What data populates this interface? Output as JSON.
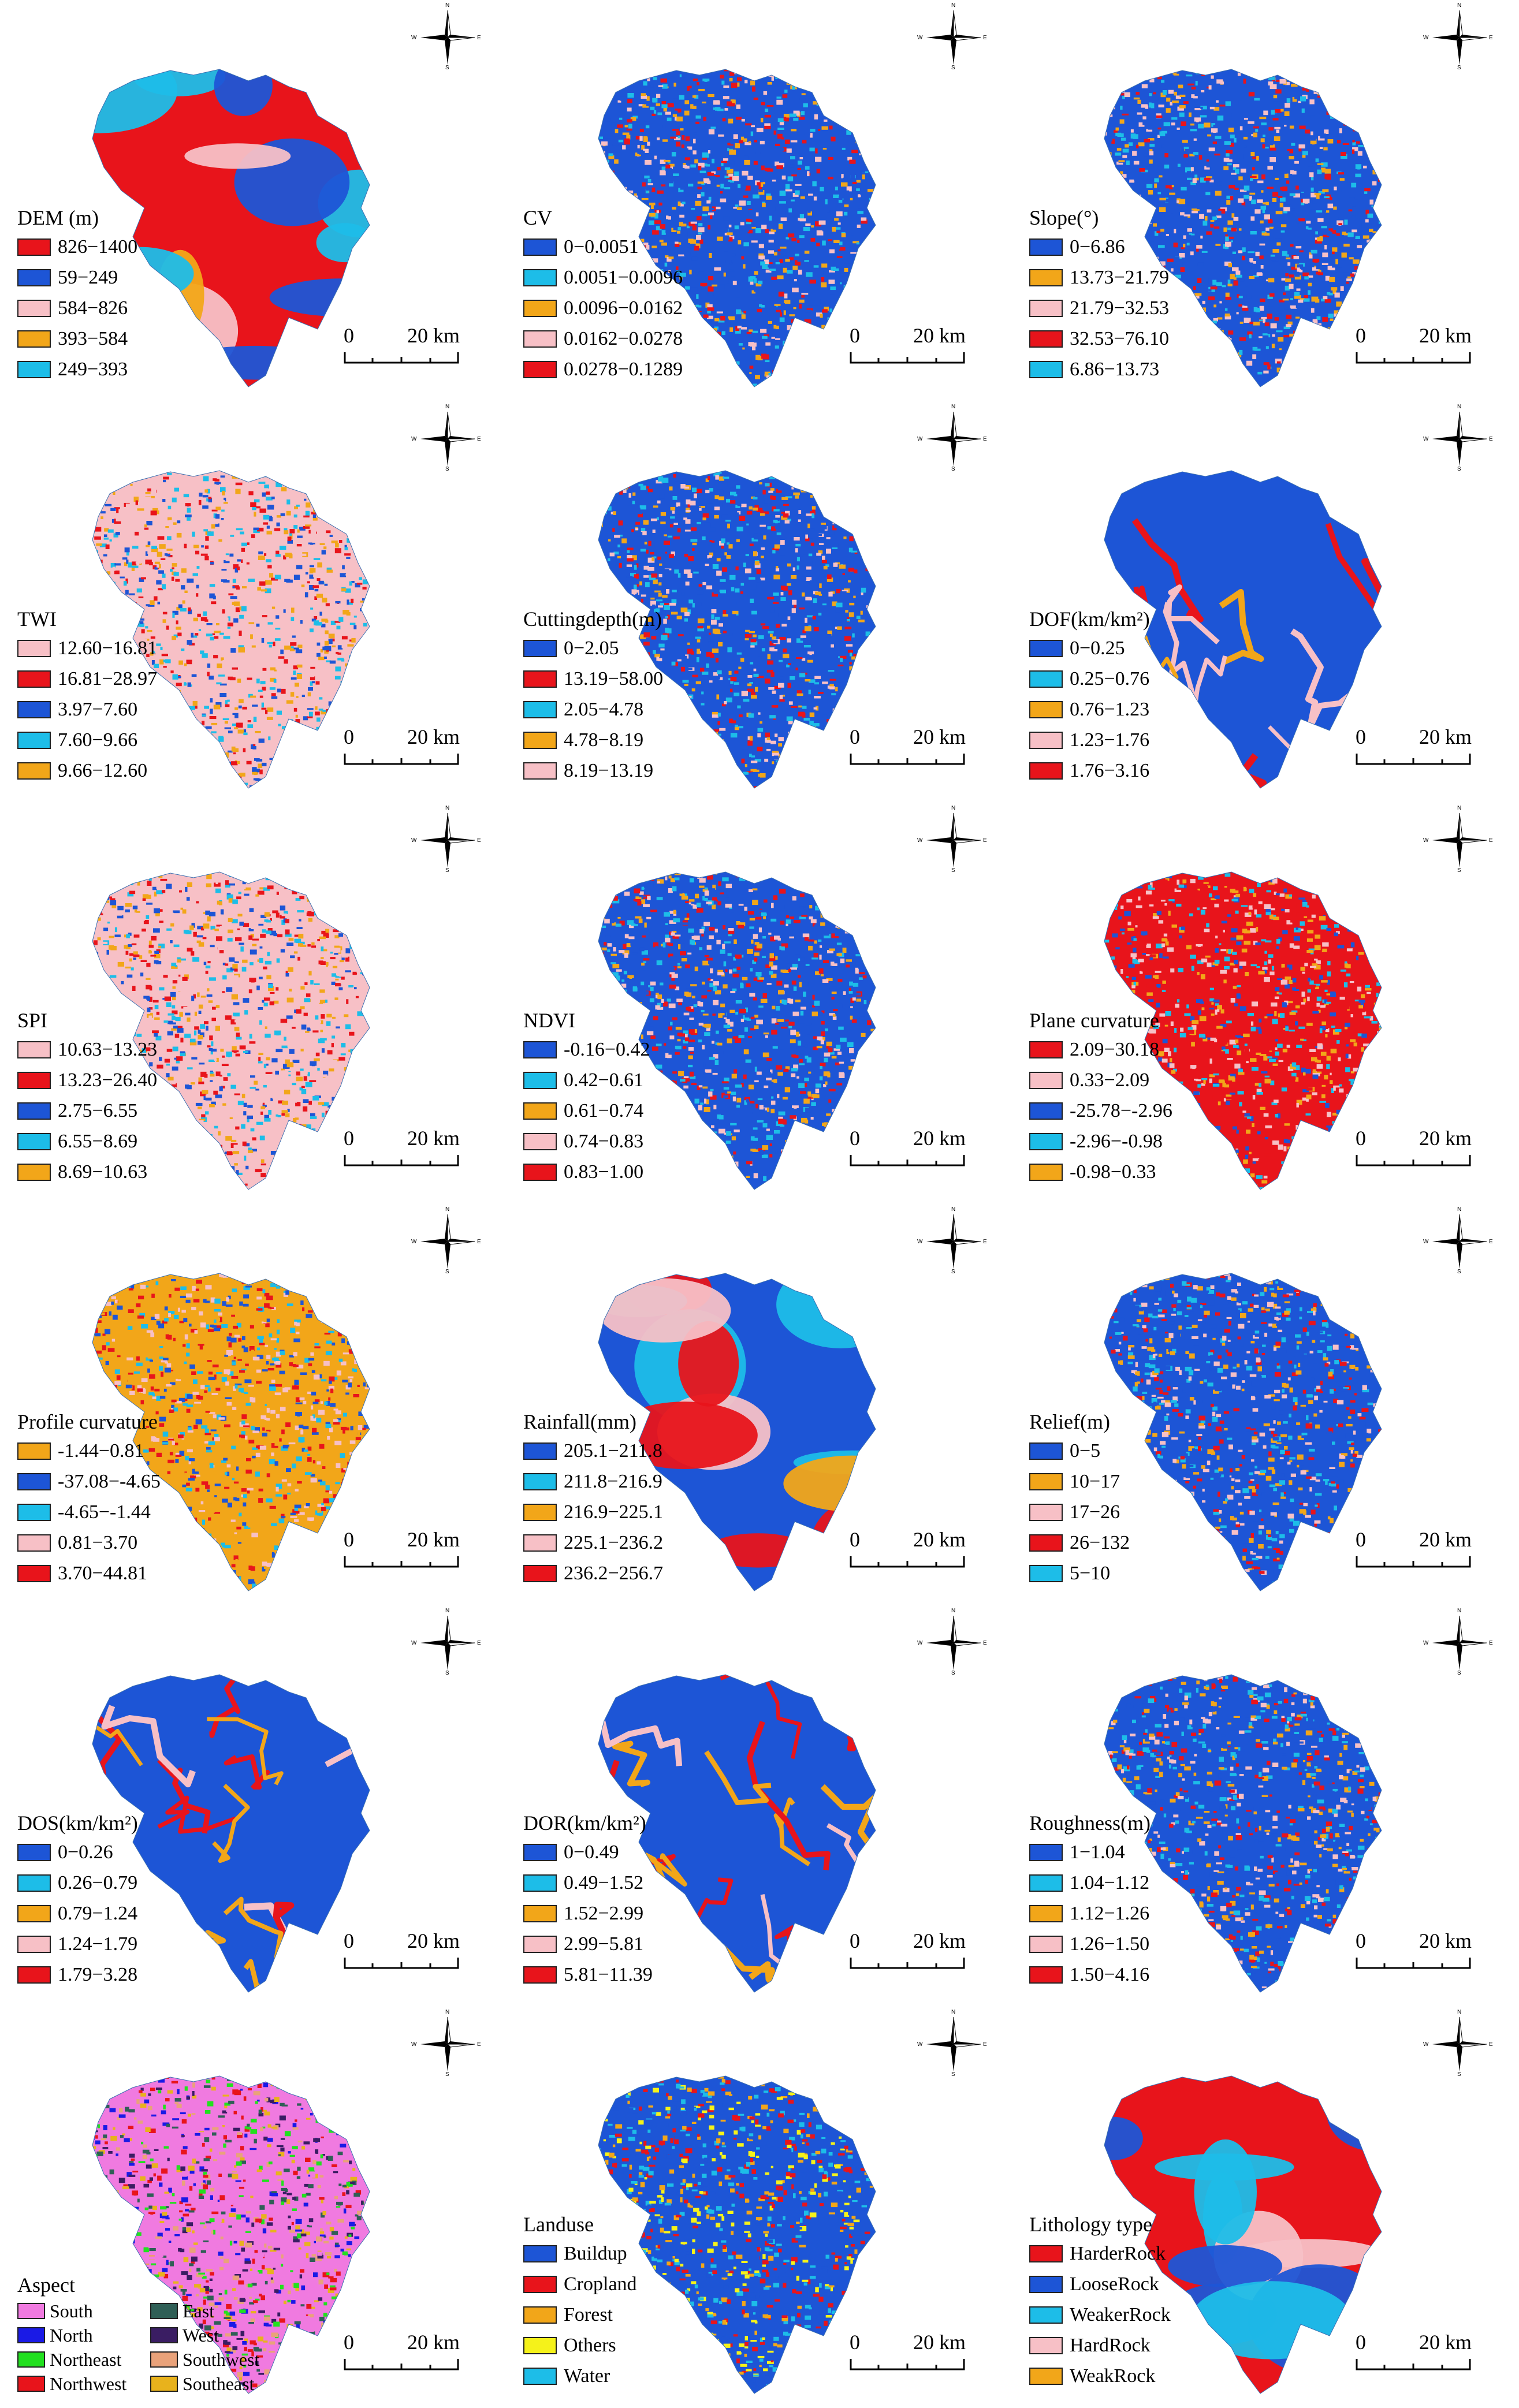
{
  "compass": {
    "n": "N",
    "s": "S",
    "e": "E",
    "w": "W"
  },
  "scalebar": {
    "zero": "0",
    "distance": "20 km"
  },
  "panels": [
    {
      "id": "dem",
      "title": "DEM (m)",
      "map": "blob",
      "items": [
        {
          "label": "826−1400",
          "color": "#e8141b"
        },
        {
          "label": "59−249",
          "color": "#1d55d6"
        },
        {
          "label": "584−826",
          "color": "#f7c0c6"
        },
        {
          "label": "393−584",
          "color": "#f2a619"
        },
        {
          "label": "249−393",
          "color": "#1dbde8"
        }
      ]
    },
    {
      "id": "cv",
      "title": "CV",
      "map": "speckle",
      "items": [
        {
          "label": "0−0.0051",
          "color": "#1d55d6"
        },
        {
          "label": "0.0051−0.0096",
          "color": "#1dbde8"
        },
        {
          "label": "0.0096−0.0162",
          "color": "#f2a619"
        },
        {
          "label": "0.0162−0.0278",
          "color": "#f7c0c6"
        },
        {
          "label": "0.0278−0.1289",
          "color": "#e8141b"
        }
      ]
    },
    {
      "id": "slope",
      "title": "Slope(°)",
      "map": "speckle",
      "items": [
        {
          "label": "0−6.86",
          "color": "#1d55d6"
        },
        {
          "label": "13.73−21.79",
          "color": "#f2a619"
        },
        {
          "label": "21.79−32.53",
          "color": "#f7c0c6"
        },
        {
          "label": "32.53−76.10",
          "color": "#e8141b"
        },
        {
          "label": "6.86−13.73",
          "color": "#1dbde8"
        }
      ]
    },
    {
      "id": "twi",
      "title": "TWI",
      "map": "speckle",
      "items": [
        {
          "label": "12.60−16.81",
          "color": "#f7c0c6"
        },
        {
          "label": "16.81−28.97",
          "color": "#e8141b"
        },
        {
          "label": "3.97−7.60",
          "color": "#1d55d6"
        },
        {
          "label": "7.60−9.66",
          "color": "#1dbde8"
        },
        {
          "label": "9.66−12.60",
          "color": "#f2a619"
        }
      ]
    },
    {
      "id": "cutting",
      "title": "Cuttingdepth(m)",
      "map": "speckle",
      "items": [
        {
          "label": "0−2.05",
          "color": "#1d55d6"
        },
        {
          "label": "13.19−58.00",
          "color": "#e8141b"
        },
        {
          "label": "2.05−4.78",
          "color": "#1dbde8"
        },
        {
          "label": "4.78−8.19",
          "color": "#f2a619"
        },
        {
          "label": "8.19−13.19",
          "color": "#f7c0c6"
        }
      ]
    },
    {
      "id": "dof",
      "title": "DOF(km/km²)",
      "map": "lines",
      "items": [
        {
          "label": "0−0.25",
          "color": "#1d55d6"
        },
        {
          "label": "0.25−0.76",
          "color": "#1dbde8"
        },
        {
          "label": "0.76−1.23",
          "color": "#f2a619"
        },
        {
          "label": "1.23−1.76",
          "color": "#f7c0c6"
        },
        {
          "label": "1.76−3.16",
          "color": "#e8141b"
        }
      ]
    },
    {
      "id": "spi",
      "title": "SPI",
      "map": "speckle",
      "items": [
        {
          "label": "10.63−13.23",
          "color": "#f7c0c6"
        },
        {
          "label": "13.23−26.40",
          "color": "#e8141b"
        },
        {
          "label": "2.75−6.55",
          "color": "#1d55d6"
        },
        {
          "label": "6.55−8.69",
          "color": "#1dbde8"
        },
        {
          "label": "8.69−10.63",
          "color": "#f2a619"
        }
      ]
    },
    {
      "id": "ndvi",
      "title": "NDVI",
      "map": "speckle",
      "items": [
        {
          "label": "-0.16−0.42",
          "color": "#1d55d6"
        },
        {
          "label": "0.42−0.61",
          "color": "#1dbde8"
        },
        {
          "label": "0.61−0.74",
          "color": "#f2a619"
        },
        {
          "label": "0.74−0.83",
          "color": "#f7c0c6"
        },
        {
          "label": "0.83−1.00",
          "color": "#e8141b"
        }
      ]
    },
    {
      "id": "plane",
      "title": "Plane curvature",
      "map": "speckle",
      "items": [
        {
          "label": "2.09−30.18",
          "color": "#e8141b"
        },
        {
          "label": "0.33−2.09",
          "color": "#f7c0c6"
        },
        {
          "label": "-25.78−-2.96",
          "color": "#1d55d6"
        },
        {
          "label": "-2.96−-0.98",
          "color": "#1dbde8"
        },
        {
          "label": "-0.98−0.33",
          "color": "#f2a619"
        }
      ]
    },
    {
      "id": "profile",
      "title": "Profile curvature",
      "map": "speckle",
      "items": [
        {
          "label": "-1.44−0.81",
          "color": "#f2a619"
        },
        {
          "label": "-37.08−-4.65",
          "color": "#1d55d6"
        },
        {
          "label": "-4.65−-1.44",
          "color": "#1dbde8"
        },
        {
          "label": "0.81−3.70",
          "color": "#f7c0c6"
        },
        {
          "label": "3.70−44.81",
          "color": "#e8141b"
        }
      ]
    },
    {
      "id": "rainfall",
      "title": "Rainfall(mm)",
      "map": "blob",
      "items": [
        {
          "label": "205.1−211.8",
          "color": "#1d55d6"
        },
        {
          "label": "211.8−216.9",
          "color": "#1dbde8"
        },
        {
          "label": "216.9−225.1",
          "color": "#f2a619"
        },
        {
          "label": "225.1−236.2",
          "color": "#f7c0c6"
        },
        {
          "label": "236.2−256.7",
          "color": "#e8141b"
        }
      ]
    },
    {
      "id": "relief",
      "title": "Relief(m)",
      "map": "speckle",
      "items": [
        {
          "label": "0−5",
          "color": "#1d55d6"
        },
        {
          "label": "10−17",
          "color": "#f2a619"
        },
        {
          "label": "17−26",
          "color": "#f7c0c6"
        },
        {
          "label": "26−132",
          "color": "#e8141b"
        },
        {
          "label": "5−10",
          "color": "#1dbde8"
        }
      ]
    },
    {
      "id": "dos",
      "title": "DOS(km/km²)",
      "map": "lines",
      "items": [
        {
          "label": "0−0.26",
          "color": "#1d55d6"
        },
        {
          "label": "0.26−0.79",
          "color": "#1dbde8"
        },
        {
          "label": "0.79−1.24",
          "color": "#f2a619"
        },
        {
          "label": "1.24−1.79",
          "color": "#f7c0c6"
        },
        {
          "label": "1.79−3.28",
          "color": "#e8141b"
        }
      ]
    },
    {
      "id": "dor",
      "title": "DOR(km/km²)",
      "map": "lines",
      "items": [
        {
          "label": "0−0.49",
          "color": "#1d55d6"
        },
        {
          "label": "0.49−1.52",
          "color": "#1dbde8"
        },
        {
          "label": "1.52−2.99",
          "color": "#f2a619"
        },
        {
          "label": "2.99−5.81",
          "color": "#f7c0c6"
        },
        {
          "label": "5.81−11.39",
          "color": "#e8141b"
        }
      ]
    },
    {
      "id": "roughness",
      "title": "Roughness(m)",
      "map": "speckle",
      "items": [
        {
          "label": "1−1.04",
          "color": "#1d55d6"
        },
        {
          "label": "1.04−1.12",
          "color": "#1dbde8"
        },
        {
          "label": "1.12−1.26",
          "color": "#f2a619"
        },
        {
          "label": "1.26−1.50",
          "color": "#f7c0c6"
        },
        {
          "label": "1.50−4.16",
          "color": "#e8141b"
        }
      ]
    },
    {
      "id": "aspect",
      "title": "Aspect",
      "map": "speckle",
      "two_col": true,
      "items": [
        {
          "label": "South",
          "color": "#f07ae0"
        },
        {
          "label": "East",
          "color": "#2f5f56"
        },
        {
          "label": "North",
          "color": "#1a1ae6"
        },
        {
          "label": "West",
          "color": "#3a1d63"
        },
        {
          "label": "Northeast",
          "color": "#22e01f"
        },
        {
          "label": "Southwest",
          "color": "#e9a27a"
        },
        {
          "label": "Northwest",
          "color": "#e8141b"
        },
        {
          "label": "Southeast",
          "color": "#e8b21c"
        }
      ]
    },
    {
      "id": "landuse",
      "title": "Landuse",
      "map": "speckle",
      "items": [
        {
          "label": "Buildup",
          "color": "#1d55d6"
        },
        {
          "label": "Cropland",
          "color": "#e8141b"
        },
        {
          "label": "Forest",
          "color": "#f2a619"
        },
        {
          "label": "Others",
          "color": "#f5f21a"
        },
        {
          "label": "Water",
          "color": "#1dbde8"
        }
      ]
    },
    {
      "id": "lithology",
      "title": "Lithology type",
      "map": "blob",
      "items": [
        {
          "label": "HarderRock",
          "color": "#e8141b"
        },
        {
          "label": "LooseRock",
          "color": "#1d55d6"
        },
        {
          "label": "WeakerRock",
          "color": "#1dbde8"
        },
        {
          "label": "HardRock",
          "color": "#f7c0c6"
        },
        {
          "label": "WeakRock",
          "color": "#f2a619"
        }
      ]
    }
  ]
}
